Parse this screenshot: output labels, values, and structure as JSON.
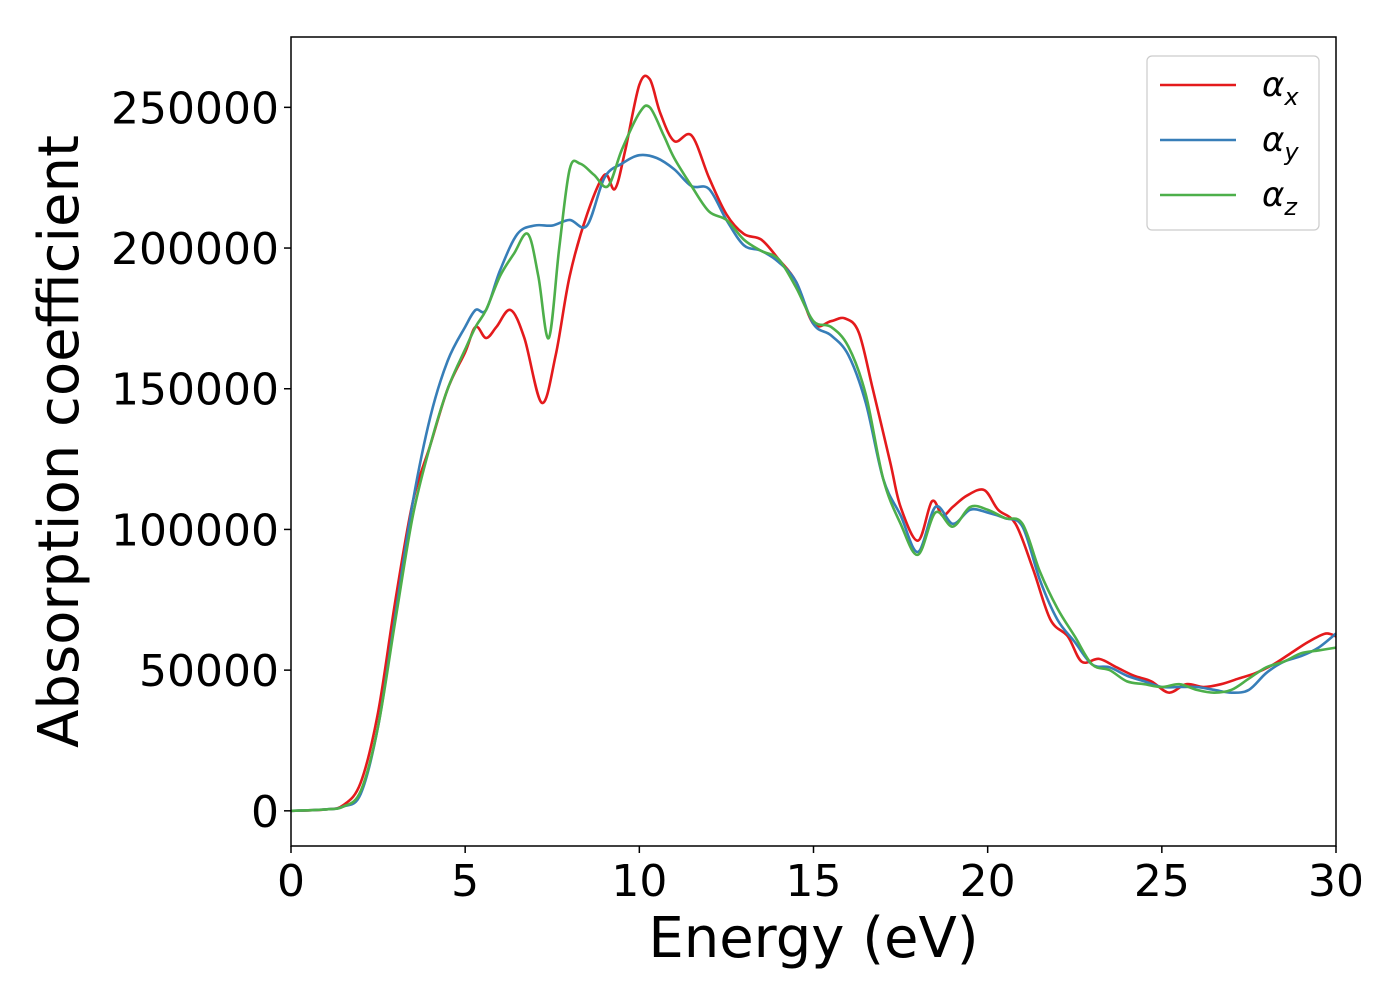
{
  "chart_data": {
    "type": "line",
    "title": "",
    "xlabel": "Energy (eV)",
    "ylabel": "Absorption coefficient",
    "xlim": [
      0,
      30
    ],
    "ylim": [
      -12500,
      275000
    ],
    "xticks": [
      0,
      5,
      10,
      15,
      20,
      25,
      30
    ],
    "yticks": [
      0,
      50000,
      100000,
      150000,
      200000,
      250000
    ],
    "grid": false,
    "legend_position": "top-right",
    "series": [
      {
        "name": "α_x",
        "legend_symbol": "α",
        "legend_subscript": "x",
        "color": "#e41a1c",
        "x": [
          0,
          1,
          1.5,
          2,
          2.5,
          3,
          3.5,
          4,
          4.5,
          5,
          5.3,
          5.6,
          5.9,
          6.3,
          6.7,
          7.2,
          7.6,
          8,
          8.5,
          9,
          9.3,
          9.6,
          10,
          10.3,
          10.6,
          11,
          11.5,
          12,
          12.5,
          13,
          13.5,
          14,
          14.5,
          15,
          15.5,
          15.9,
          16.3,
          16.7,
          17.2,
          17.5,
          18,
          18.4,
          18.7,
          19,
          19.4,
          19.9,
          20.3,
          20.8,
          21.3,
          21.8,
          22.3,
          22.7,
          23.2,
          23.7,
          24.2,
          24.7,
          25.2,
          25.7,
          26.2,
          26.7,
          27.2,
          27.7,
          28.2,
          28.7,
          29.2,
          29.7,
          30
        ],
        "y": [
          0,
          500,
          2000,
          10000,
          35000,
          75000,
          110000,
          130000,
          150000,
          163000,
          172000,
          168000,
          172000,
          178000,
          168000,
          145000,
          162000,
          190000,
          212000,
          226000,
          221000,
          235000,
          258000,
          260000,
          248000,
          238000,
          240000,
          225000,
          212000,
          205000,
          203000,
          196000,
          188000,
          173000,
          174000,
          175000,
          170000,
          150000,
          124000,
          108000,
          96000,
          110000,
          105000,
          108000,
          112000,
          114000,
          107000,
          102000,
          86000,
          68000,
          62000,
          53000,
          54000,
          51000,
          48000,
          46000,
          42000,
          45000,
          44000,
          45000,
          47000,
          49000,
          52000,
          56000,
          60000,
          63000,
          62000
        ]
      },
      {
        "name": "α_y",
        "legend_symbol": "α",
        "legend_subscript": "y",
        "color": "#377eb8",
        "x": [
          0,
          1,
          1.5,
          2,
          2.5,
          3,
          3.5,
          4,
          4.5,
          5,
          5.3,
          5.6,
          6,
          6.5,
          7,
          7.5,
          8,
          8.5,
          9,
          9.5,
          10,
          10.5,
          11,
          11.5,
          12,
          12.5,
          13,
          13.5,
          14,
          14.5,
          15,
          15.5,
          16,
          16.5,
          17,
          17.5,
          18,
          18.5,
          19,
          19.5,
          20,
          20.5,
          21,
          21.5,
          22,
          22.5,
          23,
          23.5,
          24,
          24.5,
          25,
          25.5,
          26,
          26.5,
          27,
          27.5,
          28,
          28.5,
          29,
          29.5,
          30
        ],
        "y": [
          0,
          500,
          1500,
          6000,
          30000,
          70000,
          110000,
          140000,
          160000,
          172000,
          178000,
          178000,
          192000,
          205000,
          208000,
          208000,
          210000,
          208000,
          225000,
          230000,
          233000,
          232000,
          228000,
          222000,
          221000,
          210000,
          201000,
          199000,
          195000,
          188000,
          173000,
          169000,
          162000,
          145000,
          118000,
          105000,
          92000,
          108000,
          102000,
          107000,
          106000,
          104000,
          101000,
          82000,
          68000,
          60000,
          52000,
          51000,
          48000,
          46000,
          44000,
          44000,
          44000,
          43000,
          42000,
          43000,
          49000,
          53000,
          55000,
          58000,
          63000
        ]
      },
      {
        "name": "α_z",
        "legend_symbol": "α",
        "legend_subscript": "z",
        "color": "#4daf4a",
        "x": [
          0,
          1,
          1.5,
          2,
          2.5,
          3,
          3.5,
          4,
          4.5,
          5,
          5.3,
          5.6,
          6,
          6.4,
          6.8,
          7.1,
          7.4,
          7.7,
          8,
          8.3,
          8.7,
          9.1,
          9.5,
          10,
          10.3,
          10.7,
          11,
          11.5,
          12,
          12.5,
          13,
          13.5,
          14,
          14.5,
          15,
          15.5,
          16,
          16.5,
          17,
          17.5,
          18,
          18.5,
          19,
          19.5,
          20,
          20.5,
          21,
          21.5,
          22,
          22.5,
          23,
          23.5,
          24,
          24.5,
          25,
          25.5,
          26,
          26.5,
          27,
          27.5,
          28,
          28.5,
          29,
          29.5,
          30
        ],
        "y": [
          0,
          500,
          1500,
          7000,
          30000,
          68000,
          105000,
          130000,
          150000,
          164000,
          172000,
          178000,
          190000,
          198000,
          205000,
          190000,
          168000,
          200000,
          228000,
          230000,
          226000,
          222000,
          235000,
          248000,
          250000,
          240000,
          232000,
          222000,
          213000,
          210000,
          203000,
          199000,
          196000,
          186000,
          174000,
          172000,
          165000,
          148000,
          118000,
          102000,
          91000,
          106000,
          101000,
          108000,
          107000,
          104000,
          102000,
          85000,
          72000,
          62000,
          52000,
          50000,
          46000,
          45000,
          44000,
          45000,
          43000,
          42000,
          43000,
          47000,
          51000,
          53000,
          56000,
          57000,
          58000
        ]
      }
    ]
  }
}
